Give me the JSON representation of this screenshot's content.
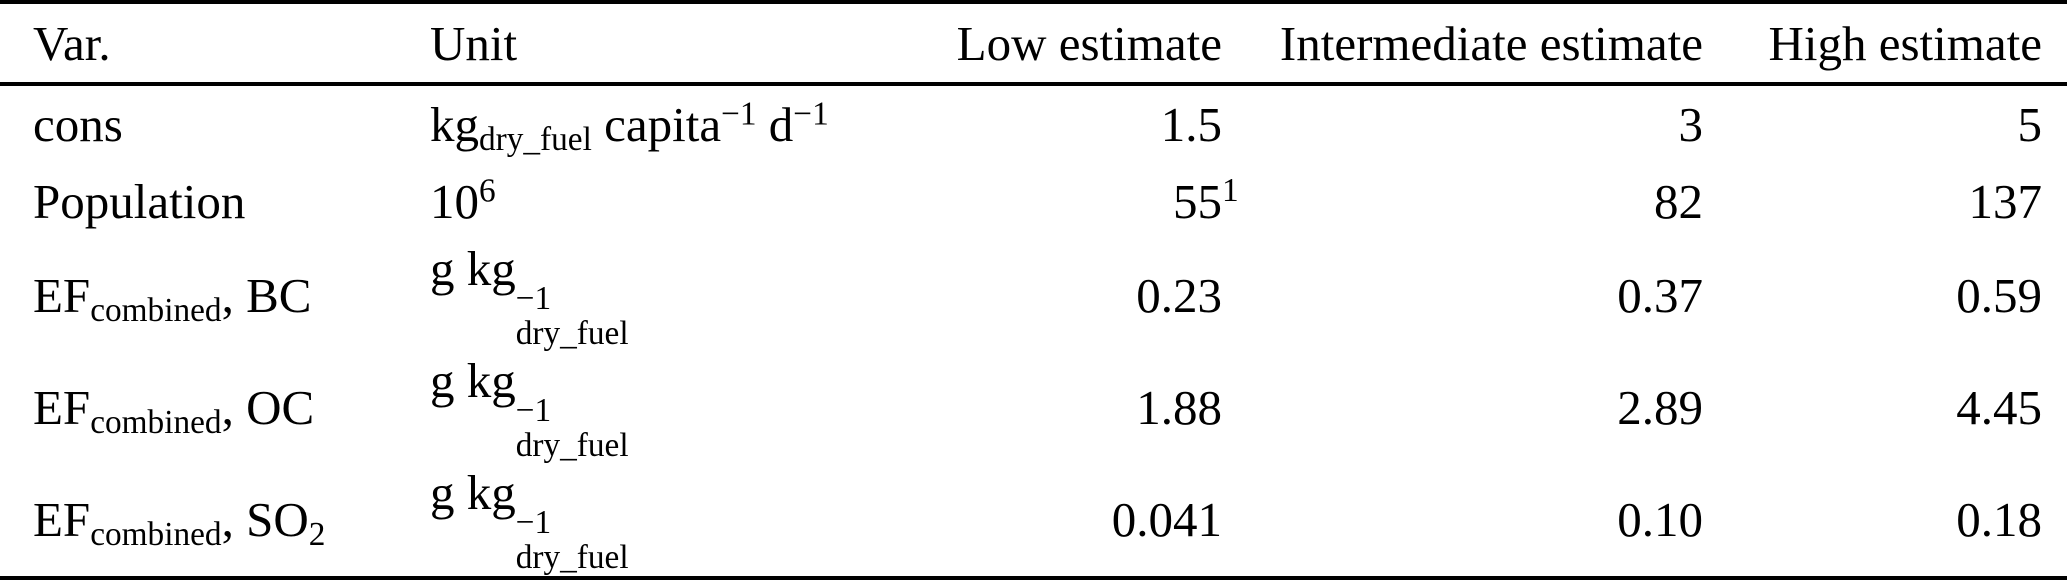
{
  "table": {
    "columns": [
      {
        "key": "var",
        "label": "Var.",
        "align": "left"
      },
      {
        "key": "unit",
        "label": "Unit",
        "align": "left"
      },
      {
        "key": "low",
        "label": "Low estimate",
        "align": "right"
      },
      {
        "key": "mid",
        "label": "Intermediate estimate",
        "align": "right"
      },
      {
        "key": "high",
        "label": "High estimate",
        "align": "right"
      }
    ],
    "rows": [
      {
        "var": [
          {
            "t": "cons"
          }
        ],
        "unit": [
          {
            "t": "kg"
          },
          {
            "sub": "dry_fuel"
          },
          {
            "t": " capita"
          },
          {
            "sup": "−1"
          },
          {
            "t": " d"
          },
          {
            "sup": "−1"
          }
        ],
        "low": [
          {
            "t": "1.5"
          }
        ],
        "mid": [
          {
            "t": "3"
          }
        ],
        "high": [
          {
            "t": "5"
          }
        ]
      },
      {
        "var": [
          {
            "t": "Population"
          }
        ],
        "unit": [
          {
            "t": "10"
          },
          {
            "sup": "6"
          }
        ],
        "low": [
          {
            "t": "55"
          },
          {
            "sup": "1",
            "zw": true
          }
        ],
        "mid": [
          {
            "t": "82"
          }
        ],
        "high": [
          {
            "t": "137"
          }
        ]
      },
      {
        "var": [
          {
            "t": "EF"
          },
          {
            "sub": "combined"
          },
          {
            "t": ", BC"
          }
        ],
        "unit": [
          {
            "t": "g kg"
          },
          {
            "stack": {
              "sup": "−1",
              "sub": "dry_fuel"
            }
          }
        ],
        "low": [
          {
            "t": "0.23"
          }
        ],
        "mid": [
          {
            "t": "0.37"
          }
        ],
        "high": [
          {
            "t": "0.59"
          }
        ]
      },
      {
        "var": [
          {
            "t": "EF"
          },
          {
            "sub": "combined"
          },
          {
            "t": ", OC"
          }
        ],
        "unit": [
          {
            "t": "g kg"
          },
          {
            "stack": {
              "sup": "−1",
              "sub": "dry_fuel"
            }
          }
        ],
        "low": [
          {
            "t": "1.88"
          }
        ],
        "mid": [
          {
            "t": "2.89"
          }
        ],
        "high": [
          {
            "t": "4.45"
          }
        ]
      },
      {
        "var": [
          {
            "t": "EF"
          },
          {
            "sub": "combined"
          },
          {
            "t": ", SO"
          },
          {
            "sub": "2"
          }
        ],
        "unit": [
          {
            "t": "g kg"
          },
          {
            "stack": {
              "sup": "−1",
              "sub": "dry_fuel"
            }
          }
        ],
        "low": [
          {
            "t": "0.041"
          }
        ],
        "mid": [
          {
            "t": "0.10"
          }
        ],
        "high": [
          {
            "t": "0.18"
          }
        ]
      }
    ]
  }
}
